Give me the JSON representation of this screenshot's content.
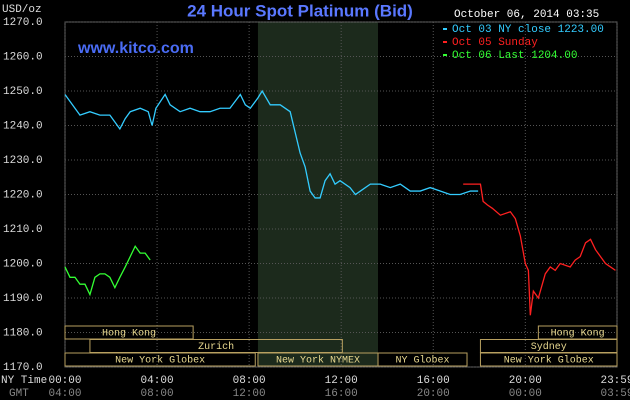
{
  "chart_data": {
    "type": "line",
    "title": "24 Hour Spot Platinum (Bid)",
    "ylabel": "USD/oz",
    "watermark": "www.kitco.com",
    "timestamp": "October 06, 2014 03:35",
    "x_row_label": "NY Time",
    "x2_row_label": "GMT",
    "xlim": [
      0,
      1439
    ],
    "ylim": [
      1170,
      1270
    ],
    "xticks": [
      {
        "value": 0,
        "label": "00:00"
      },
      {
        "value": 240,
        "label": "04:00"
      },
      {
        "value": 480,
        "label": "08:00"
      },
      {
        "value": 720,
        "label": "12:00"
      },
      {
        "value": 960,
        "label": "16:00"
      },
      {
        "value": 1200,
        "label": "20:00"
      },
      {
        "value": 1439,
        "label": "23:59"
      }
    ],
    "x2ticks": [
      {
        "value": 0,
        "label": "04:00"
      },
      {
        "value": 240,
        "label": "08:00"
      },
      {
        "value": 480,
        "label": "12:00"
      },
      {
        "value": 720,
        "label": "16:00"
      },
      {
        "value": 960,
        "label": "20:00"
      },
      {
        "value": 1200,
        "label": "00:00"
      },
      {
        "value": 1439,
        "label": "03:59"
      }
    ],
    "yticks": [
      {
        "value": 1170,
        "label": "1170.0"
      },
      {
        "value": 1180,
        "label": "1180.0"
      },
      {
        "value": 1190,
        "label": "1190.0"
      },
      {
        "value": 1200,
        "label": "1200.0"
      },
      {
        "value": 1210,
        "label": "1210.0"
      },
      {
        "value": 1220,
        "label": "1220.0"
      },
      {
        "value": 1230,
        "label": "1230.0"
      },
      {
        "value": 1240,
        "label": "1240.0"
      },
      {
        "value": 1250,
        "label": "1250.0"
      },
      {
        "value": 1260,
        "label": "1260.0"
      },
      {
        "value": 1270,
        "label": "1270.0"
      }
    ],
    "grid": true,
    "shade": [
      503,
      816
    ],
    "sessions": [
      {
        "name": "Hong Kong",
        "row": 0,
        "start": 0,
        "end": 334
      },
      {
        "name": "Hong Kong",
        "row": 0,
        "start": 1234,
        "end": 1439
      },
      {
        "name": "Zurich",
        "row": 1,
        "start": 65,
        "end": 723
      },
      {
        "name": "Sydney",
        "row": 1,
        "start": 1083,
        "end": 1439
      },
      {
        "name": "New York Globex",
        "row": 2,
        "start": 0,
        "end": 496
      },
      {
        "name": "New York NYMEX",
        "row": 2,
        "start": 503,
        "end": 816
      },
      {
        "name": "NY Globex",
        "row": 2,
        "start": 816,
        "end": 1048
      },
      {
        "name": "New York Globex",
        "row": 2,
        "start": 1083,
        "end": 1439
      }
    ],
    "series": [
      {
        "name": "Oct 03 NY close 1223.00",
        "color": "#33ccff",
        "x": [
          0,
          13,
          26,
          39,
          65,
          91,
          117,
          130,
          143,
          157,
          170,
          196,
          217,
          227,
          237,
          261,
          274,
          300,
          326,
          352,
          378,
          404,
          430,
          457,
          470,
          483,
          503,
          514,
          535,
          561,
          587,
          600,
          613,
          626,
          639,
          652,
          665,
          678,
          691,
          704,
          717,
          743,
          757,
          770,
          796,
          822,
          848,
          874,
          900,
          926,
          952,
          978,
          1004,
          1030,
          1057,
          1077
        ],
        "values": [
          1249,
          1247,
          1245,
          1243,
          1244,
          1243,
          1243,
          1241,
          1239,
          1242,
          1244,
          1245,
          1244,
          1240,
          1245,
          1249,
          1246,
          1244,
          1245,
          1244,
          1244,
          1245,
          1245,
          1249,
          1246,
          1245,
          1248,
          1250,
          1246,
          1246,
          1244,
          1238,
          1232,
          1228,
          1221,
          1219,
          1219,
          1224,
          1226,
          1223,
          1224,
          1222,
          1220,
          1221,
          1223,
          1223,
          1222,
          1223,
          1221,
          1221,
          1222,
          1221,
          1220,
          1220,
          1221,
          1221
        ]
      },
      {
        "name": "Oct 05 Sunday",
        "color": "#ff2020",
        "x": [
          1038,
          1083,
          1090,
          1101,
          1114,
          1135,
          1161,
          1174,
          1187,
          1200,
          1208,
          1213,
          1221,
          1234,
          1252,
          1265,
          1278,
          1291,
          1317,
          1330,
          1343,
          1357,
          1370,
          1383,
          1396,
          1409,
          1422,
          1435
        ],
        "values": [
          1223,
          1223,
          1218,
          1217,
          1216,
          1214,
          1215,
          1213,
          1208,
          1200,
          1198,
          1185,
          1192,
          1190,
          1197,
          1199,
          1198,
          1200,
          1199,
          1201,
          1202,
          1206,
          1207,
          1204,
          1202,
          1200,
          1199,
          1198
        ]
      },
      {
        "name": "Oct 06 Last 1204.00",
        "color": "#33ff33",
        "x": [
          0,
          13,
          26,
          39,
          52,
          65,
          78,
          91,
          104,
          117,
          130,
          143,
          157,
          170,
          183,
          196,
          209,
          222
        ],
        "values": [
          1199,
          1196,
          1196,
          1194,
          1194,
          1191,
          1196,
          1197,
          1197,
          1196,
          1193,
          1196,
          1199,
          1202,
          1205,
          1203,
          1203,
          1201
        ]
      }
    ]
  }
}
